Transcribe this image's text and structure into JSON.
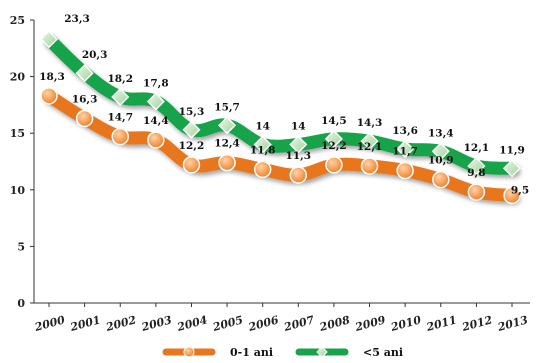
{
  "chart_data": {
    "type": "line",
    "categories": [
      "2000",
      "2001",
      "2002",
      "2003",
      "2004",
      "2005",
      "2006",
      "2007",
      "2008",
      "2009",
      "2010",
      "2011",
      "2012",
      "2013"
    ],
    "series": [
      {
        "name": "0-1 ani",
        "values": [
          18.3,
          16.3,
          14.7,
          14.4,
          12.2,
          12.4,
          11.8,
          11.3,
          12.2,
          12.1,
          11.7,
          10.9,
          9.8,
          9.5
        ],
        "labels": [
          "18,3",
          "16,3",
          "14,7",
          "14,4",
          "12,2",
          "12,4",
          "11,8",
          "11,3",
          "12,2",
          "12,1",
          "11,7",
          "10,9",
          "9,8",
          "9,5"
        ],
        "color": "#e8761e",
        "marker_color": "#f4a15a"
      },
      {
        "name": "<5 ani",
        "values": [
          23.3,
          20.3,
          18.2,
          17.8,
          15.3,
          15.7,
          14,
          14,
          14.5,
          14.3,
          13.6,
          13.4,
          12.1,
          11.9
        ],
        "labels": [
          "23,3",
          "20,3",
          "18,2",
          "17,8",
          "15,3",
          "15,7",
          "14",
          "14",
          "14,5",
          "14,3",
          "13,6",
          "13,4",
          "12,1",
          "11,9"
        ],
        "color": "#17a34a",
        "marker_color": "#c6e7c4"
      }
    ],
    "ylim": [
      0,
      25
    ],
    "yticks": [
      "0",
      "5",
      "10",
      "15",
      "20",
      "25"
    ],
    "grid": false,
    "legend_position": "bottom"
  }
}
